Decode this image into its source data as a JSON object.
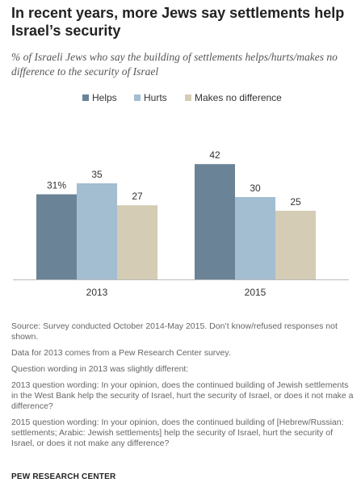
{
  "title": "In recent years, more Jews say settlements help Israel’s security",
  "subtitle": "% of Israeli Jews who say the building of settlements helps/hurts/makes no difference to the security of Israel",
  "chart_data": {
    "type": "bar",
    "categories": [
      "2013",
      "2015"
    ],
    "series": [
      {
        "name": "Helps",
        "values": [
          31,
          42
        ],
        "labels": [
          "31%",
          "42"
        ],
        "color": "#6b8396"
      },
      {
        "name": "Hurts",
        "values": [
          35,
          30
        ],
        "labels": [
          "35",
          "30"
        ],
        "color": "#a3bdd1"
      },
      {
        "name": "Makes no difference",
        "values": [
          27,
          25
        ],
        "labels": [
          "27",
          "25"
        ],
        "color": "#d4ccb4"
      }
    ],
    "ylim": [
      0,
      50
    ],
    "grid": false,
    "legend": "top"
  },
  "notes": [
    "Source: Survey conducted October 2014-May 2015. Don’t know/refused responses not shown.",
    "Data for 2013 comes from a Pew Research Center survey.",
    "Question wording in 2013 was slightly different:",
    "2013 question wording: In your opinion, does the continued building of Jewish settlements in the West Bank help the security of Israel, hurt the security of Israel, or does it not make a difference?",
    "2015 question wording: In your opinion, does the continued building of [Hebrew/Russian: settlements; Arabic: Jewish settlements] help the security of Israel, hurt the security of Israel, or does it not make any difference?"
  ],
  "credit": "PEW RESEARCH CENTER"
}
